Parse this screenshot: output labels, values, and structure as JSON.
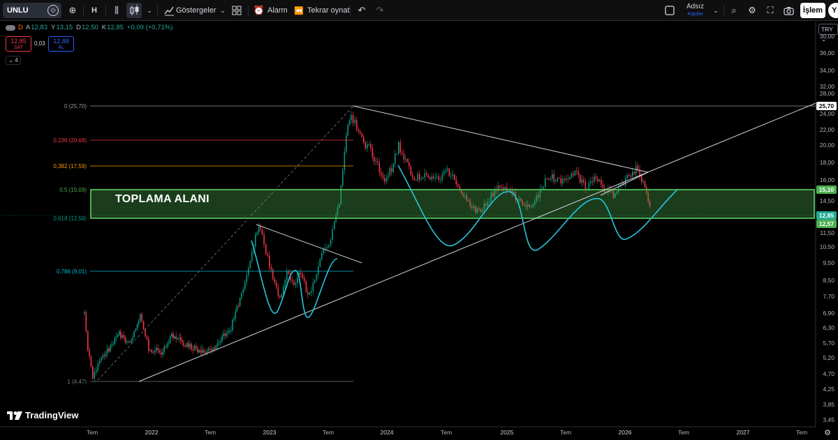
{
  "toolbar": {
    "symbol": "UNLU",
    "interval": "H",
    "indicators_label": "Göstergeler",
    "alert_label": "Alarm",
    "replay_label": "Tekrar oynat",
    "layout_name": "Adsız",
    "layout_sub": "Kaydet",
    "trade_label": "İşlem",
    "avatar_letter": "Y"
  },
  "legend": {
    "timeframe": "D",
    "open_label": "A",
    "open_value": "12,83",
    "high_label": "Y",
    "high_value": "13,15",
    "low_label": "D",
    "low_value": "12,50",
    "close_label": "K",
    "close_value": "12,85",
    "change": "+0,09 (+0,71%)",
    "sell_price": "12,85",
    "sell_label": "SAT",
    "spread": "0,03",
    "buy_price": "12,88",
    "buy_label": "AL",
    "collapsed_count": "4"
  },
  "currency": "TRY",
  "price_axis": {
    "labels": [
      "36,00",
      "34,00",
      "32,00",
      "30,00",
      "28,00",
      "25,70",
      "24,00",
      "22,00",
      "20,00",
      "18,00",
      "16,00",
      "15,10",
      "14,50",
      "12,85",
      "12,57",
      "11,50",
      "10,50",
      "9,50",
      "8,50",
      "7,70",
      "6,90",
      "6,30",
      "5,70",
      "5,20",
      "4,70",
      "4,25",
      "3,85",
      "3,45"
    ],
    "tags": [
      {
        "text": "25,70",
        "bg": "#ffffff",
        "fg": "#000000"
      },
      {
        "text": "15,10",
        "bg": "#4caf50",
        "fg": "#ffffff"
      },
      {
        "text": "12,85",
        "bg": "#22ab94",
        "fg": "#ffffff"
      },
      {
        "text": "12,57",
        "bg": "#4caf50",
        "fg": "#ffffff"
      }
    ]
  },
  "time_axis": {
    "labels": [
      "Tem",
      "2022",
      "Tem",
      "2023",
      "Tem",
      "2024",
      "Tem",
      "2025",
      "Tem",
      "2026",
      "Tem",
      "2027",
      "Tem"
    ]
  },
  "fib_levels": [
    {
      "text": "0 (25,70)",
      "color": "#9598a1"
    },
    {
      "text": "0,236 (20,68)",
      "color": "#f23645"
    },
    {
      "text": "0,382 (17,59)",
      "color": "#ff9800"
    },
    {
      "text": "0,5 (15,09)",
      "color": "#4caf50"
    },
    {
      "text": "0,618 (12,58)",
      "color": "#089981"
    },
    {
      "text": "0,786 (9,01)",
      "color": "#00bcd4"
    },
    {
      "text": "1 (4,47)",
      "color": "#787b86"
    }
  ],
  "zone_label": "TOPLAMA ALANI",
  "brand": "TradingView",
  "colors": {
    "up": "#089981",
    "down": "#f23645",
    "zone": "#4caf50",
    "curve": "#26c6da"
  }
}
